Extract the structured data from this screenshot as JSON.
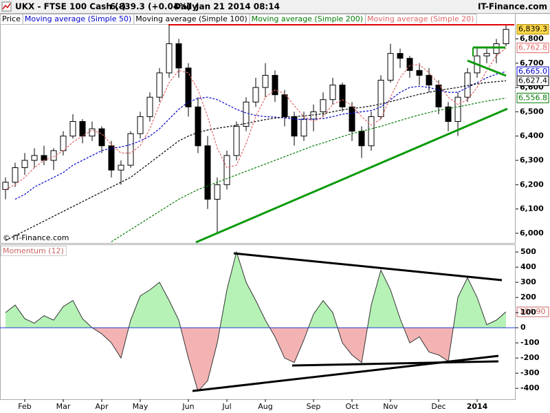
{
  "header": {
    "symbol": "UKX - FTSE 100 Cash (-)",
    "quote": "6,839.3 (+0.04%)",
    "period": "Daily",
    "timestamp": "Jan 21 2014 08:14",
    "brand": "IT-Finance.com"
  },
  "chart_data": [
    {
      "type": "candlestick",
      "watermark": "© IT-Finance.com",
      "ylim": [
        5960,
        6858
      ],
      "yticks": [
        {
          "value": 6000,
          "label": "6,000"
        },
        {
          "value": 6100,
          "label": "6,100"
        },
        {
          "value": 6200,
          "label": "6,200"
        },
        {
          "value": 6300,
          "label": "6,300"
        },
        {
          "value": 6400,
          "label": "6,400"
        },
        {
          "value": 6500,
          "label": "6,500"
        },
        {
          "value": 6600,
          "label": "6,600"
        },
        {
          "value": 6700,
          "label": "6,700"
        },
        {
          "value": 6800,
          "label": "6,800"
        }
      ],
      "series": [
        {
          "name": "Price",
          "type": "candlestick",
          "color": "#000000",
          "up_color": "#ffffff",
          "down_color": "#000000",
          "open": [
            6180,
            6210,
            6270,
            6300,
            6320,
            6300,
            6340,
            6400,
            6460,
            6400,
            6430,
            6360,
            6260,
            6280,
            6410,
            6480,
            6560,
            6660,
            6780,
            6680,
            6520,
            6360,
            6140,
            6200,
            6320,
            6440,
            6540,
            6600,
            6650,
            6570,
            6480,
            6400,
            6470,
            6500,
            6550,
            6610,
            6520,
            6420,
            6360,
            6480,
            6630,
            6740,
            6720,
            6670,
            6650,
            6610,
            6520,
            6460,
            6560,
            6660,
            6730,
            6740,
            6780
          ],
          "high": [
            6230,
            6290,
            6330,
            6350,
            6360,
            6350,
            6420,
            6490,
            6470,
            6460,
            6440,
            6380,
            6300,
            6420,
            6500,
            6580,
            6680,
            6860,
            6800,
            6700,
            6560,
            6400,
            6230,
            6340,
            6460,
            6560,
            6640,
            6700,
            6670,
            6590,
            6500,
            6500,
            6530,
            6580,
            6640,
            6620,
            6540,
            6440,
            6500,
            6650,
            6780,
            6760,
            6730,
            6700,
            6680,
            6630,
            6540,
            6580,
            6680,
            6760,
            6760,
            6800,
            6860
          ],
          "low": [
            6140,
            6190,
            6240,
            6270,
            6280,
            6260,
            6320,
            6390,
            6370,
            6380,
            6330,
            6230,
            6200,
            6270,
            6390,
            6460,
            6540,
            6640,
            6640,
            6480,
            6330,
            6100,
            6000,
            6180,
            6300,
            6420,
            6520,
            6560,
            6540,
            6440,
            6360,
            6380,
            6420,
            6480,
            6530,
            6500,
            6380,
            6310,
            6340,
            6470,
            6620,
            6680,
            6640,
            6610,
            6580,
            6490,
            6420,
            6400,
            6540,
            6640,
            6700,
            6700,
            6770
          ],
          "close": [
            6210,
            6270,
            6300,
            6320,
            6300,
            6340,
            6400,
            6460,
            6400,
            6430,
            6360,
            6260,
            6280,
            6410,
            6480,
            6560,
            6660,
            6780,
            6680,
            6520,
            6360,
            6140,
            6200,
            6320,
            6440,
            6540,
            6600,
            6650,
            6570,
            6480,
            6400,
            6470,
            6500,
            6550,
            6610,
            6520,
            6420,
            6360,
            6480,
            6630,
            6740,
            6720,
            6670,
            6650,
            6610,
            6520,
            6460,
            6560,
            6660,
            6730,
            6740,
            6780,
            6839.3
          ],
          "value_labels": [
            null,
            null,
            null,
            null,
            null,
            null,
            null,
            null,
            null,
            null,
            null,
            null,
            null,
            null,
            null,
            null,
            null,
            null,
            null,
            null,
            null,
            null,
            null,
            null,
            null,
            null,
            null,
            null,
            null,
            null,
            null,
            null,
            null,
            null,
            null,
            null,
            null,
            null,
            null,
            null,
            null,
            null,
            null,
            null,
            null,
            null,
            null,
            null,
            null,
            null,
            null,
            null,
            "6,839.3"
          ]
        },
        {
          "name": "Moving average (Simple 50)",
          "type": "line",
          "color": "#0000cc",
          "values": [
            null,
            6140,
            6160,
            6190,
            6210,
            6230,
            6250,
            6280,
            6300,
            6320,
            6340,
            6350,
            6355,
            6365,
            6380,
            6400,
            6430,
            6470,
            6510,
            6540,
            6555,
            6560,
            6550,
            6530,
            6510,
            6495,
            6485,
            6480,
            6478,
            6475,
            6470,
            6468,
            6470,
            6472,
            6480,
            6490,
            6495,
            6500,
            6505,
            6520,
            6550,
            6580,
            6600,
            6605,
            6600,
            6590,
            6580,
            6580,
            6600,
            6620,
            6640,
            6655,
            6665
          ],
          "value_labels": [
            null,
            null,
            null,
            null,
            null,
            null,
            null,
            null,
            null,
            null,
            null,
            null,
            null,
            null,
            null,
            null,
            null,
            null,
            null,
            null,
            null,
            null,
            null,
            null,
            null,
            null,
            null,
            null,
            null,
            null,
            null,
            null,
            null,
            null,
            null,
            null,
            null,
            null,
            null,
            null,
            null,
            null,
            null,
            null,
            null,
            null,
            null,
            null,
            null,
            null,
            null,
            null,
            "6,665.0"
          ]
        },
        {
          "name": "Moving average (Simple 100)",
          "type": "line",
          "color": "#000000",
          "values": [
            5970,
            5990,
            6010,
            6030,
            6050,
            6070,
            6090,
            6110,
            6130,
            6150,
            6170,
            6190,
            6210,
            6230,
            6260,
            6290,
            6320,
            6350,
            6380,
            6400,
            6415,
            6425,
            6432,
            6438,
            6445,
            6452,
            6460,
            6468,
            6474,
            6478,
            6480,
            6483,
            6487,
            6492,
            6500,
            6508,
            6513,
            6518,
            6524,
            6532,
            6542,
            6552,
            6562,
            6572,
            6580,
            6588,
            6594,
            6600,
            6608,
            6615,
            6620,
            6624,
            6627.4
          ],
          "value_labels": [
            null,
            null,
            null,
            null,
            null,
            null,
            null,
            null,
            null,
            null,
            null,
            null,
            null,
            null,
            null,
            null,
            null,
            null,
            null,
            null,
            null,
            null,
            null,
            null,
            null,
            null,
            null,
            null,
            null,
            null,
            null,
            null,
            null,
            null,
            null,
            null,
            null,
            null,
            null,
            null,
            null,
            null,
            null,
            null,
            null,
            null,
            null,
            null,
            null,
            null,
            null,
            null,
            "6,627.4"
          ]
        },
        {
          "name": "Moving average (Simple 200)",
          "type": "line",
          "color": "#007a00",
          "values": [
            null,
            null,
            null,
            null,
            null,
            null,
            null,
            null,
            null,
            null,
            null,
            5965,
            5990,
            6015,
            6040,
            6065,
            6090,
            6115,
            6140,
            6160,
            6180,
            6195,
            6210,
            6225,
            6240,
            6255,
            6270,
            6285,
            6300,
            6315,
            6330,
            6345,
            6360,
            6372,
            6385,
            6398,
            6410,
            6420,
            6430,
            6440,
            6452,
            6464,
            6476,
            6487,
            6497,
            6506,
            6513,
            6520,
            6528,
            6536,
            6544,
            6550,
            6556.8
          ],
          "value_labels": [
            null,
            null,
            null,
            null,
            null,
            null,
            null,
            null,
            null,
            null,
            null,
            null,
            null,
            null,
            null,
            null,
            null,
            null,
            null,
            null,
            null,
            null,
            null,
            null,
            null,
            null,
            null,
            null,
            null,
            null,
            null,
            null,
            null,
            null,
            null,
            null,
            null,
            null,
            null,
            null,
            null,
            null,
            null,
            null,
            null,
            null,
            null,
            null,
            null,
            null,
            null,
            null,
            "6,556.8"
          ]
        },
        {
          "name": "Moving average (Simple 20)",
          "type": "line",
          "color": "#e06666",
          "values": [
            6180,
            6200,
            6230,
            6270,
            6300,
            6315,
            6340,
            6375,
            6400,
            6425,
            6410,
            6365,
            6330,
            6330,
            6360,
            6430,
            6530,
            6620,
            6670,
            6660,
            6590,
            6480,
            6350,
            6270,
            6280,
            6370,
            6480,
            6560,
            6590,
            6575,
            6525,
            6480,
            6460,
            6480,
            6530,
            6550,
            6525,
            6480,
            6445,
            6470,
            6560,
            6640,
            6690,
            6695,
            6660,
            6615,
            6560,
            6530,
            6550,
            6600,
            6670,
            6730,
            6762.8
          ],
          "value_labels": [
            null,
            null,
            null,
            null,
            null,
            null,
            null,
            null,
            null,
            null,
            null,
            null,
            null,
            null,
            null,
            null,
            null,
            null,
            null,
            null,
            null,
            null,
            null,
            null,
            null,
            null,
            null,
            null,
            null,
            null,
            null,
            null,
            null,
            null,
            null,
            null,
            null,
            null,
            null,
            null,
            null,
            null,
            null,
            null,
            null,
            null,
            null,
            null,
            null,
            null,
            null,
            null,
            "6,762.8"
          ]
        }
      ]
    },
    {
      "type": "area",
      "ylim": [
        -472,
        546
      ],
      "yticks": [
        500,
        400,
        300,
        200,
        100,
        0,
        -100,
        -200,
        -300,
        -400
      ],
      "categories": [
        null,
        null,
        "Feb",
        null,
        null,
        null,
        "Mar",
        null,
        null,
        null,
        "Apr",
        null,
        null,
        null,
        "May",
        null,
        null,
        null,
        null,
        "Jun",
        null,
        null,
        null,
        "Jul",
        null,
        null,
        null,
        "Aug",
        null,
        null,
        null,
        null,
        "Sep",
        null,
        null,
        null,
        "Oct",
        null,
        null,
        null,
        "Nov",
        null,
        null,
        null,
        null,
        "Dec",
        null,
        null,
        null,
        "2014",
        null,
        null,
        null
      ],
      "series": [
        {
          "name": "Momentum (12)",
          "color": "#cc6666",
          "line_color": "#333333",
          "fill_up": "#b6f2b6",
          "fill_down": "#f4b3b3",
          "values": [
            100,
            150,
            60,
            30,
            80,
            50,
            140,
            180,
            60,
            0,
            -40,
            -100,
            -200,
            50,
            210,
            250,
            300,
            180,
            50,
            -200,
            -420,
            -350,
            -100,
            250,
            500,
            300,
            180,
            50,
            -60,
            -200,
            -230,
            -80,
            90,
            180,
            100,
            -100,
            -180,
            -230,
            150,
            380,
            250,
            60,
            -100,
            -60,
            -160,
            -180,
            -220,
            200,
            330,
            200,
            20,
            50,
            104.9
          ],
          "value_labels": [
            null,
            null,
            null,
            null,
            null,
            null,
            null,
            null,
            null,
            null,
            null,
            null,
            null,
            null,
            null,
            null,
            null,
            null,
            null,
            null,
            null,
            null,
            null,
            null,
            null,
            null,
            null,
            null,
            null,
            null,
            null,
            null,
            null,
            null,
            null,
            null,
            null,
            null,
            null,
            null,
            null,
            null,
            null,
            null,
            null,
            null,
            null,
            null,
            null,
            null,
            null,
            null,
            "104.90"
          ]
        }
      ]
    }
  ]
}
